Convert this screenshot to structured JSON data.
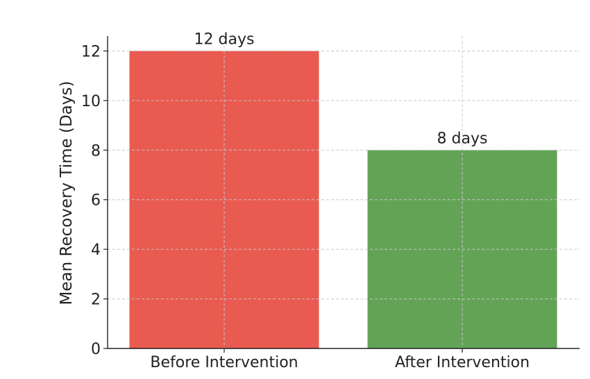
{
  "chart_data": {
    "type": "bar",
    "categories": [
      "Before Intervention",
      "After Intervention"
    ],
    "values": [
      12,
      8
    ],
    "data_labels": [
      "12 days",
      "8 days"
    ],
    "title": "",
    "xlabel": "",
    "ylabel": "Mean Recovery Time (Days)",
    "ylim": [
      0,
      12.6
    ],
    "yticks": [
      "0",
      "2",
      "4",
      "6",
      "8",
      "10",
      "12"
    ],
    "bar_colors": [
      "#e95a50",
      "#63a356"
    ],
    "grid": true,
    "grid_color": "#c8c8c8",
    "axis_color": "#222222"
  }
}
